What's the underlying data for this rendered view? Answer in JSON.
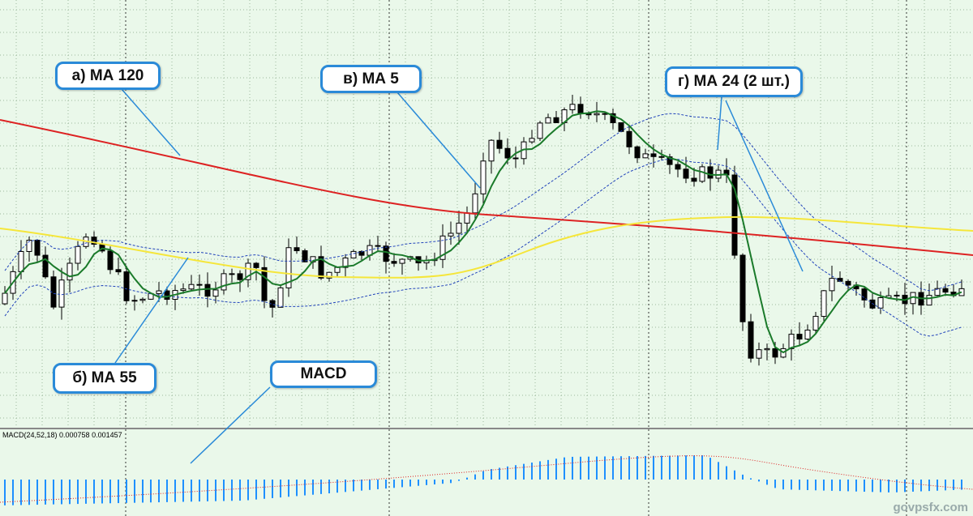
{
  "callouts": [
    {
      "label": "а) МА 120"
    },
    {
      "label": "в) МА 5"
    },
    {
      "label": "г) МА 24 (2 шт.)"
    },
    {
      "label": "б) МА 55"
    },
    {
      "label": "MACD"
    }
  ],
  "indicator_label": "MACD(24,52,18) 0.000758 0.001457",
  "watermark": "govpsfx.com"
}
